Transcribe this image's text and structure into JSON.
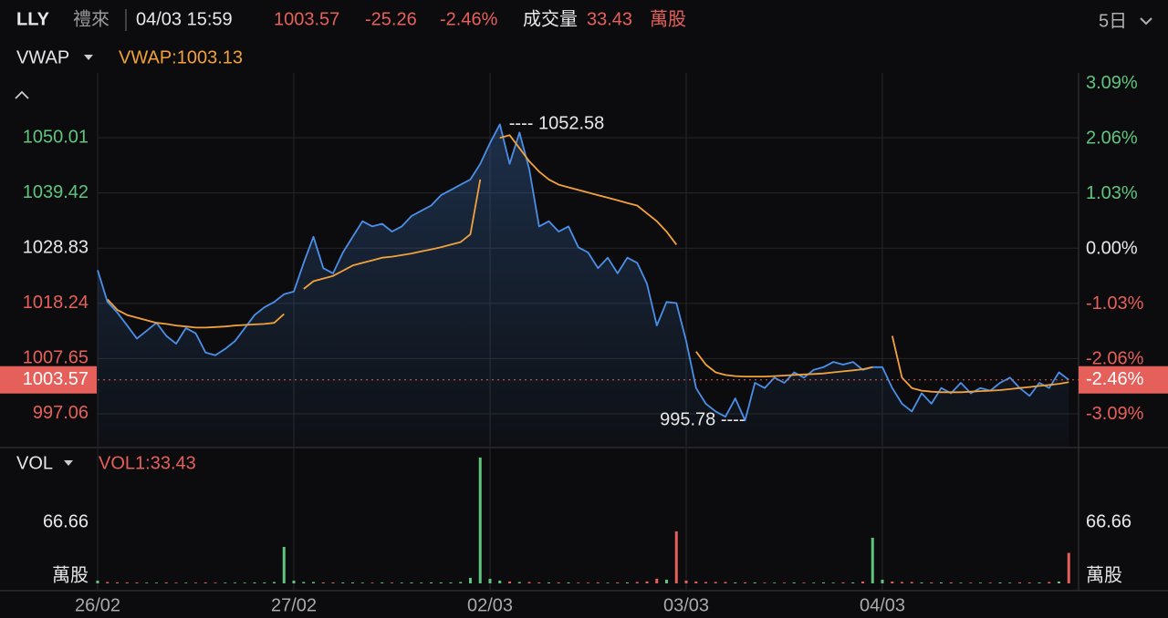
{
  "header": {
    "name": "禮來",
    "datetime": "04/03 15:59",
    "price": "1003.57",
    "change": "-25.26",
    "change_pct": "-2.46%",
    "volume_label": "成交量",
    "volume": "33.43",
    "volume_unit": "萬股",
    "period": "5日"
  },
  "chart_data": [
    {
      "type": "line",
      "indicator_label": "VWAP:1003.13",
      "x": [
        0,
        1,
        2,
        3,
        4,
        5,
        6,
        7,
        8,
        9,
        10,
        11,
        12,
        13,
        14,
        15,
        16,
        17,
        18,
        19,
        20,
        21,
        22,
        23,
        24,
        25,
        26,
        27,
        28,
        29,
        30,
        31,
        32,
        33,
        34,
        35,
        36,
        37,
        38,
        39,
        40,
        41,
        42,
        43,
        44,
        45,
        46,
        47,
        48,
        49,
        50,
        51,
        52,
        53,
        54,
        55,
        56,
        57,
        58,
        59,
        60,
        61,
        62,
        63,
        64,
        65,
        66,
        67,
        68,
        69,
        70,
        71,
        72,
        73,
        74,
        75,
        76,
        77,
        78,
        79,
        80,
        81,
        82,
        83,
        84,
        85,
        86,
        87,
        88,
        89,
        90,
        91,
        92,
        93,
        94,
        95,
        96,
        97,
        98,
        99
      ],
      "xlim": [
        0,
        100
      ],
      "xticks": [
        {
          "value": 0,
          "label": "26/02"
        },
        {
          "value": 20,
          "label": "27/02"
        },
        {
          "value": 40,
          "label": "02/03"
        },
        {
          "value": 60,
          "label": "03/03"
        },
        {
          "value": 80,
          "label": "04/03"
        }
      ],
      "ylim": [
        990.76,
        1062.44
      ],
      "yticks": [
        997.06,
        1007.65,
        1018.24,
        1028.83,
        1039.42,
        1050.01
      ],
      "y2lim": [
        -3.694,
        3.286
      ],
      "y2ticks": [
        {
          "value": -3.09,
          "label": "-3.09%"
        },
        {
          "value": -2.06,
          "label": "-2.06%"
        },
        {
          "value": -1.03,
          "label": "-1.03%"
        },
        {
          "value": 0,
          "label": "0.00%"
        },
        {
          "value": 1.03,
          "label": "1.03%"
        },
        {
          "value": 2.06,
          "label": "2.06%"
        },
        {
          "value": 3.09,
          "label": "3.09%"
        }
      ],
      "grid": true,
      "up_color": "#5fc57f",
      "down_color": "#e5605a",
      "series": [
        {
          "name": "LLY",
          "color": "#4b8fe8",
          "values": [
            1024.6,
            1018.5,
            1016.5,
            1014.0,
            1011.5,
            1013.0,
            1014.5,
            1012.0,
            1010.5,
            1013.5,
            1012.5,
            1008.8,
            1008.3,
            1009.5,
            1011.0,
            1013.5,
            1016.0,
            1017.5,
            1018.5,
            1020.0,
            1020.5,
            1026.0,
            1031.0,
            1025.0,
            1024.0,
            1028.0,
            1031.0,
            1034.0,
            1033.0,
            1033.5,
            1032.0,
            1033.0,
            1035.0,
            1036.0,
            1037.0,
            1039.0,
            1040.0,
            1041.0,
            1042.0,
            1045.0,
            1049.0,
            1052.58,
            1045.0,
            1051.0,
            1044.0,
            1033.0,
            1034.0,
            1032.0,
            1033.0,
            1029.0,
            1028.0,
            1025.0,
            1027.0,
            1024.0,
            1027.0,
            1026.0,
            1022.0,
            1014.0,
            1018.5,
            1018.3,
            1011.0,
            1002.0,
            999.0,
            997.5,
            996.5,
            1000.0,
            995.78,
            1003.0,
            1002.0,
            1004.0,
            1003.0,
            1005.0,
            1004.0,
            1005.5,
            1006.0,
            1007.0,
            1006.5,
            1007.0,
            1005.5,
            1006.0,
            1006.0,
            1002.0,
            999.0,
            997.5,
            1001.0,
            999.0,
            1002.0,
            1001.0,
            1003.0,
            1001.0,
            1002.0,
            1001.5,
            1003.0,
            1004.0,
            1002.0,
            1000.5,
            1003.0,
            1002.0,
            1005.0,
            1003.57
          ]
        },
        {
          "name": "VWAP",
          "color": "#f2a23a",
          "values": [
            null,
            1019,
            1017,
            1016,
            1015.5,
            1015,
            1014.5,
            1014.3,
            1014,
            1013.8,
            1013.6,
            1013.6,
            1013.7,
            1013.8,
            1014,
            1014.1,
            1014.2,
            1014.3,
            1014.5,
            1016.2,
            null,
            1021,
            1022.5,
            1023,
            1023.5,
            1024.5,
            1025.5,
            1026,
            1026.5,
            1027,
            1027.2,
            1027.5,
            1027.8,
            1028.2,
            1028.6,
            1029,
            1029.5,
            1030,
            1031.5,
            1042,
            null,
            1050,
            1050.5,
            1048,
            1045.5,
            1043.5,
            1042,
            1041,
            1040.5,
            1040,
            1039.5,
            1039,
            1038.5,
            1038,
            1037.5,
            1037,
            1035.5,
            1034,
            1032,
            1029.5,
            null,
            1009,
            1006.5,
            1005,
            1004.5,
            1004.3,
            1004.2,
            1004.2,
            1004.2,
            1004.3,
            1004.4,
            1004.5,
            1004.6,
            1004.7,
            1004.8,
            1005,
            1005.2,
            1005.4,
            1005.6,
            1006,
            null,
            1012,
            1004,
            1002,
            1001.5,
            1001.3,
            1001.2,
            1001.2,
            1001.2,
            1001.3,
            1001.4,
            1001.5,
            1001.6,
            1001.8,
            1002,
            1002.2,
            1002.4,
            1002.6,
            1002.8,
            1003.13
          ]
        }
      ],
      "last": {
        "value": 1003.57,
        "pct": {
          "value": -2.46,
          "label": "-2.46%"
        }
      },
      "annotations": [
        {
          "label": "---- 1052.58",
          "value": 1052.58,
          "x": 41
        },
        {
          "label": "995.78 ----",
          "value": 995.78,
          "x": 66
        }
      ]
    },
    {
      "type": "bar",
      "title": "VOL",
      "indicator_label": "VOL1:33.43",
      "unit": "萬股",
      "x": [
        0,
        1,
        2,
        3,
        4,
        5,
        6,
        7,
        8,
        9,
        10,
        11,
        12,
        13,
        14,
        15,
        16,
        17,
        18,
        19,
        20,
        21,
        22,
        23,
        24,
        25,
        26,
        27,
        28,
        29,
        30,
        31,
        32,
        33,
        34,
        35,
        36,
        37,
        38,
        39,
        40,
        41,
        42,
        43,
        44,
        45,
        46,
        47,
        48,
        49,
        50,
        51,
        52,
        53,
        54,
        55,
        56,
        57,
        58,
        59,
        60,
        61,
        62,
        63,
        64,
        65,
        66,
        67,
        68,
        69,
        70,
        71,
        72,
        73,
        74,
        75,
        76,
        77,
        78,
        79,
        80,
        81,
        82,
        83,
        84,
        85,
        86,
        87,
        88,
        89,
        90,
        91,
        92,
        93,
        94,
        95,
        96,
        97,
        98,
        99
      ],
      "ylim": [
        0,
        145
      ],
      "yticks": [
        66.66
      ],
      "values": [
        3,
        1.5,
        1,
        1,
        1,
        0.8,
        0.8,
        1,
        0.8,
        0.8,
        0.8,
        1,
        0.8,
        0.8,
        0.8,
        0.8,
        1,
        1,
        1.5,
        40,
        3,
        1.5,
        1.5,
        1,
        1,
        1,
        1,
        0.8,
        0.8,
        1,
        0.8,
        0.8,
        1,
        0.8,
        1,
        1,
        1,
        1.5,
        6,
        138,
        5,
        3,
        2,
        1.5,
        1.5,
        1,
        1,
        1,
        1,
        0.8,
        0.8,
        1,
        0.8,
        1,
        1,
        1.5,
        2,
        5,
        4,
        57,
        3,
        2,
        1.5,
        1.5,
        1.5,
        1,
        1,
        1,
        0.8,
        0.8,
        0.8,
        1,
        0.8,
        0.8,
        1,
        0.8,
        1,
        1,
        2,
        50,
        4,
        2,
        1.5,
        1.5,
        1,
        1,
        1,
        1,
        0.8,
        0.8,
        0.8,
        0.8,
        1,
        0.8,
        1,
        1,
        1,
        1.5,
        2,
        33.43
      ]
    }
  ]
}
